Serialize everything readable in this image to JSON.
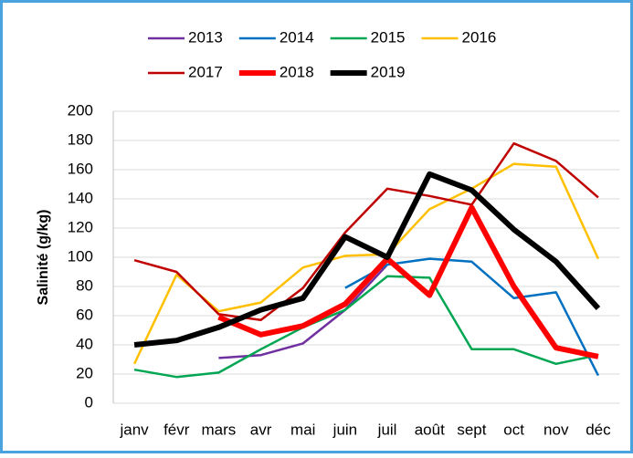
{
  "chart_data": {
    "type": "line",
    "y_label": "Salinité  (g/kg)",
    "categories": [
      "janv",
      "févr",
      "mars",
      "avr",
      "mai",
      "juin",
      "juil",
      "août",
      "sept",
      "oct",
      "nov",
      "déc"
    ],
    "ylim": [
      0,
      200
    ],
    "yticks": [
      0,
      20,
      40,
      60,
      80,
      100,
      120,
      140,
      160,
      180,
      200
    ],
    "grid": true,
    "series": [
      {
        "name": "2013",
        "color": "#7030a0",
        "width": 2.5,
        "values": [
          null,
          null,
          31,
          33,
          41,
          64,
          95,
          null,
          null,
          null,
          null,
          null
        ]
      },
      {
        "name": "2014",
        "color": "#0070c0",
        "width": 2.5,
        "values": [
          null,
          null,
          null,
          null,
          null,
          79,
          95,
          99,
          97,
          72,
          76,
          19
        ]
      },
      {
        "name": "2015",
        "color": "#00a651",
        "width": 2.5,
        "values": [
          23,
          18,
          21,
          37,
          52,
          64,
          87,
          86,
          37,
          37,
          27,
          33
        ]
      },
      {
        "name": "2016",
        "color": "#ffc000",
        "width": 2.5,
        "values": [
          27,
          88,
          63,
          69,
          93,
          101,
          102,
          133,
          147,
          164,
          162,
          99
        ]
      },
      {
        "name": "2017",
        "color": "#c00000",
        "width": 2.5,
        "values": [
          98,
          90,
          61,
          57,
          79,
          117,
          147,
          142,
          136,
          178,
          166,
          141
        ]
      },
      {
        "name": "2018",
        "color": "#ff0000",
        "width": 6,
        "values": [
          null,
          null,
          59,
          47,
          53,
          68,
          99,
          74,
          134,
          80,
          38,
          32
        ]
      },
      {
        "name": "2019",
        "color": "#000000",
        "width": 6,
        "values": [
          40,
          43,
          52,
          64,
          72,
          114,
          100,
          157,
          146,
          119,
          97,
          65
        ]
      }
    ]
  }
}
